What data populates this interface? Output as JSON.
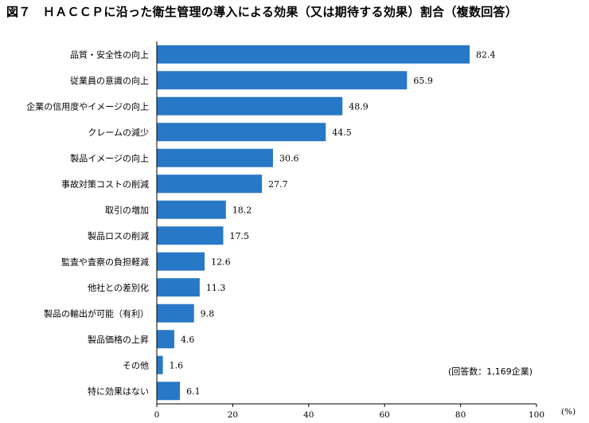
{
  "chart_data": {
    "type": "bar",
    "orientation": "horizontal",
    "title": "図７　ＨＡＣＣＰに沿った衛生管理の導入による効果（又は期待する効果）割合（複数回答）",
    "categories": [
      "品質・安全性の向上",
      "従業員の意識の向上",
      "企業の信用度やイメージの向上",
      "クレームの減少",
      "製品イメージの向上",
      "事故対策コストの削減",
      "取引の増加",
      "製品ロスの削減",
      "監査や査察の負担軽減",
      "他社との差別化",
      "製品の輸出が可能（有利）",
      "製品価格の上昇",
      "その他",
      "特に効果はない"
    ],
    "values": [
      82.4,
      65.9,
      48.9,
      44.5,
      30.6,
      27.7,
      18.2,
      17.5,
      12.6,
      11.3,
      9.8,
      4.6,
      1.6,
      6.1
    ],
    "value_labels": [
      "82.4",
      "65.9",
      "48.9",
      "44.5",
      "30.6",
      "27.7",
      "18.2",
      "17.5",
      "12.6",
      "11.3",
      "9.8",
      "4.6",
      "1.6",
      "6.1"
    ],
    "xlim": [
      0,
      100
    ],
    "xticks": [
      "0",
      "20",
      "40",
      "60",
      "80",
      "100"
    ],
    "xunit": "(%)",
    "note": "(回答数：1,169企業)",
    "bar_color": "#2878c8",
    "grid": false
  }
}
